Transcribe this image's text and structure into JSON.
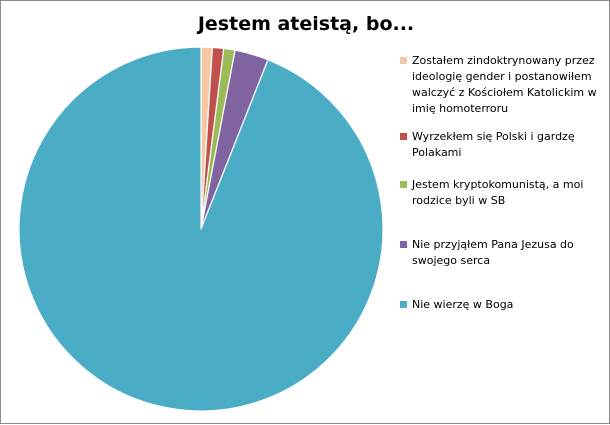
{
  "chart_data": {
    "type": "pie",
    "title": "Jestem ateistą, bo...",
    "categories": [
      "Zostałem zindoktrynowany przez ideologię gender i postanowiłem walczyć z Kościołem Katolickim w imię homoterroru",
      "Wyrzekłem się Polski i gardzę Polakami",
      "Jestem kryptokomunistą, a moi rodzice byli w SB",
      "Nie przyjąłem Pana Jezusa do swojego serca",
      "Nie wierzę w Boga"
    ],
    "values": [
      1,
      1,
      1,
      3,
      94
    ],
    "colors": [
      "#f5c9a6",
      "#c0504d",
      "#9bbb59",
      "#8064a2",
      "#4bacc6"
    ],
    "start_angle": "top (12 o'clock), clockwise",
    "legend_position": "right"
  }
}
